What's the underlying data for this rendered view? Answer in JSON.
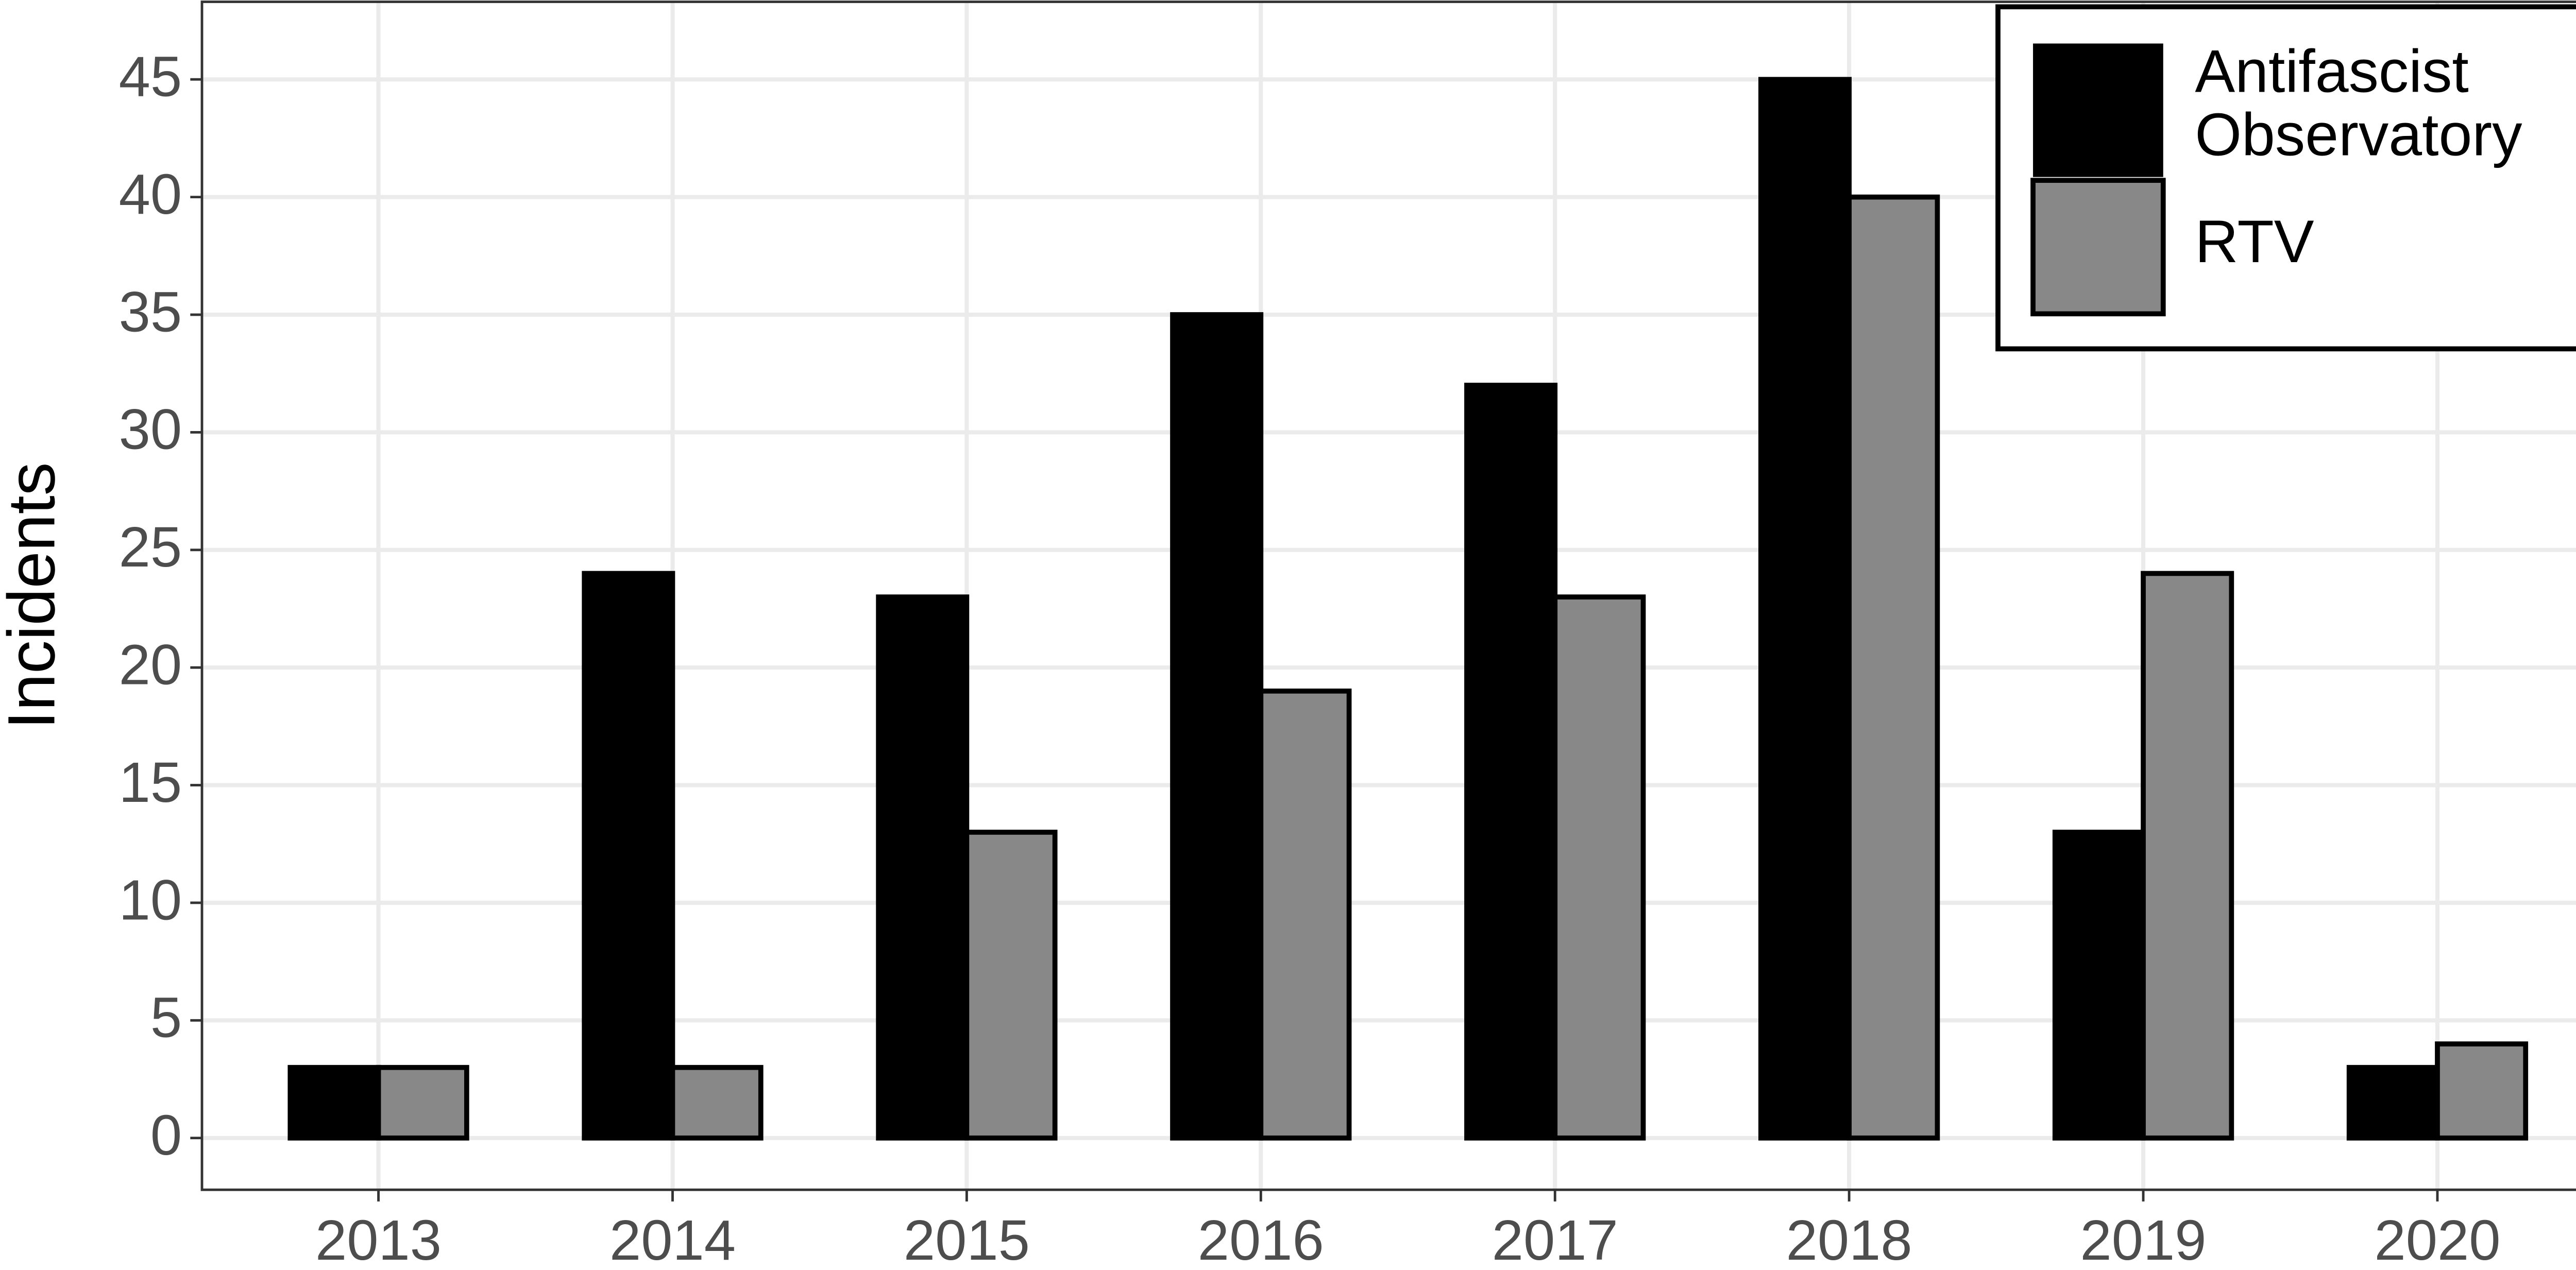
{
  "chart_data": {
    "type": "bar",
    "y_label": "Incidents",
    "categories": [
      "2013",
      "2014",
      "2015",
      "2016",
      "2017",
      "2018",
      "2019",
      "2020"
    ],
    "series": [
      {
        "name": "Antifascist Observatory",
        "color": "#000000",
        "values": [
          3,
          24,
          23,
          35,
          32,
          45,
          13,
          3
        ]
      },
      {
        "name": "RTV",
        "color": "#888888",
        "values": [
          3,
          3,
          13,
          19,
          23,
          40,
          24,
          4
        ]
      }
    ],
    "ylim": [
      -2.2,
      48.3
    ],
    "yticks": [
      0,
      5,
      10,
      15,
      20,
      25,
      30,
      35,
      40,
      45
    ],
    "grid": true,
    "legend": "top-right"
  }
}
